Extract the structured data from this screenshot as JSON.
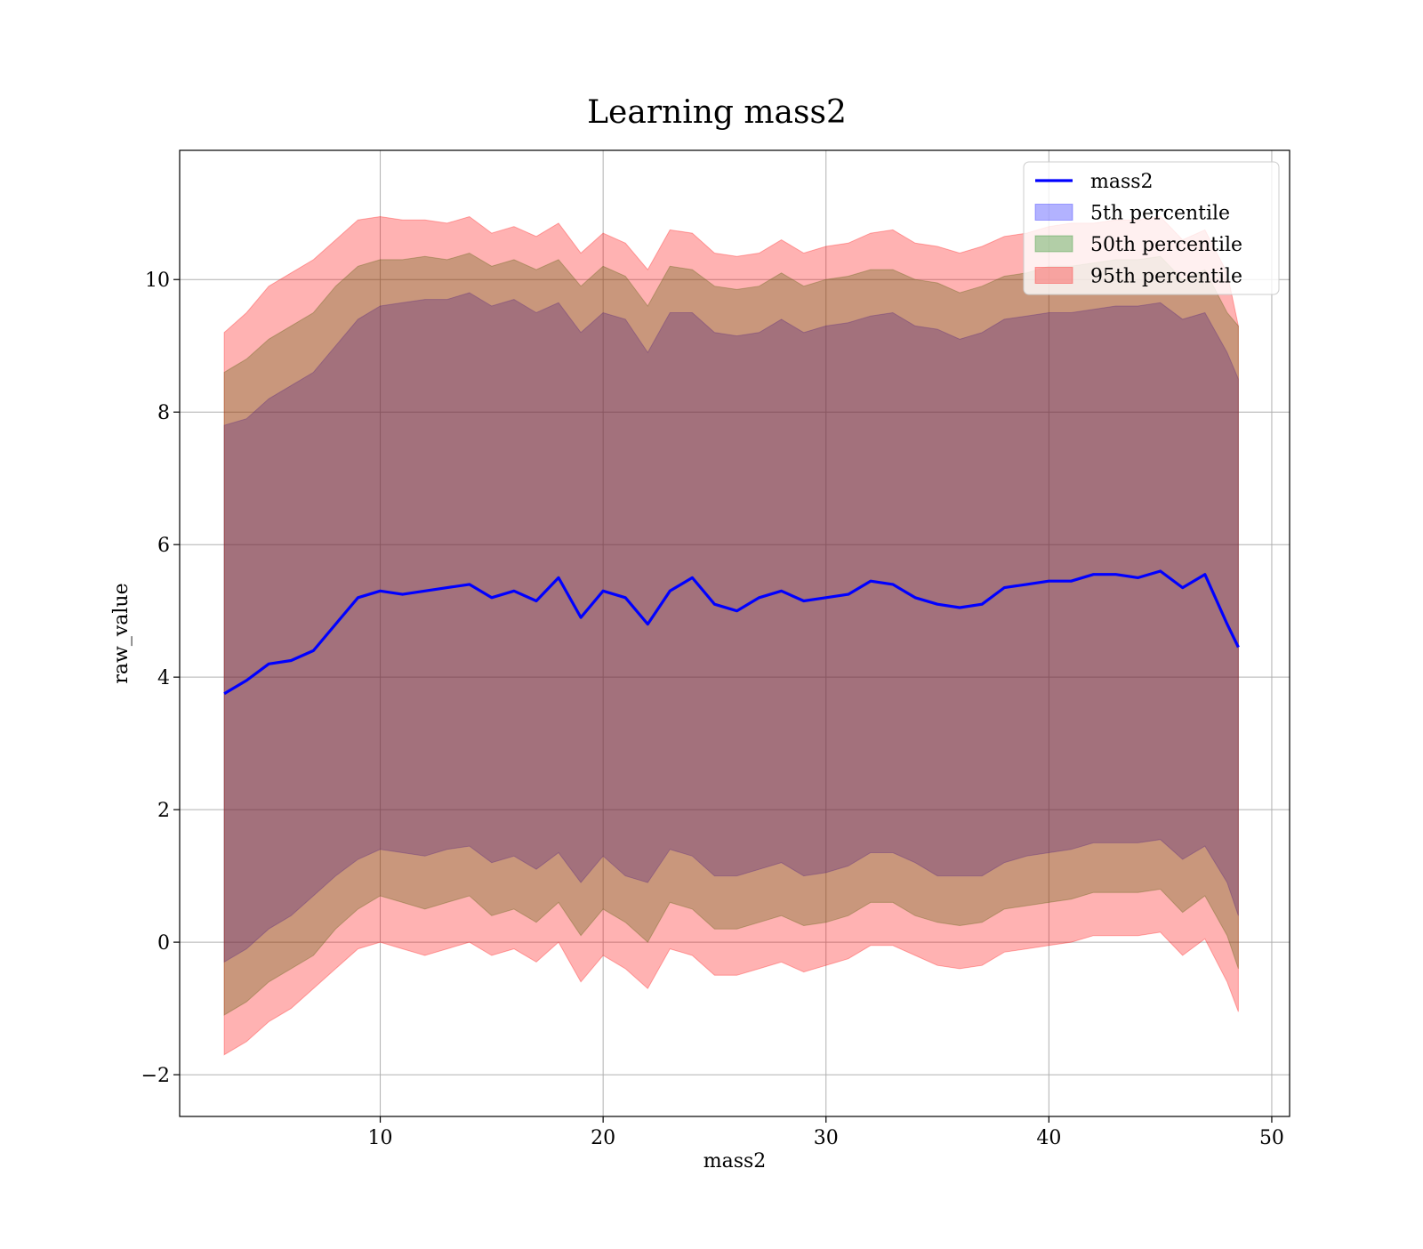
{
  "chart_data": {
    "type": "area",
    "title": "Learning mass2",
    "xlabel": "mass2",
    "ylabel": "raw_value",
    "xlim": [
      1.0,
      50.8
    ],
    "ylim": [
      -2.63,
      11.95
    ],
    "x_ticks": [
      10,
      20,
      30,
      40,
      50
    ],
    "y_ticks": [
      -2,
      0,
      2,
      4,
      6,
      8,
      10
    ],
    "grid": true,
    "legend_position": "top-right",
    "legend": [
      "mass2",
      "5th percentile",
      "50th percentile",
      "95th percentile"
    ],
    "x": [
      3,
      4,
      5,
      6,
      7,
      8,
      9,
      10,
      11,
      12,
      13,
      14,
      15,
      16,
      17,
      18,
      19,
      20,
      21,
      22,
      23,
      24,
      25,
      26,
      27,
      28,
      29,
      30,
      31,
      32,
      33,
      34,
      35,
      36,
      37,
      38,
      39,
      40,
      41,
      42,
      43,
      44,
      45,
      46,
      47,
      48,
      48.5
    ],
    "series": [
      {
        "name": "mass2",
        "type": "line",
        "color": "#0000ff",
        "values": [
          3.75,
          3.95,
          4.2,
          4.25,
          4.4,
          4.8,
          5.2,
          5.3,
          5.25,
          5.3,
          5.35,
          5.4,
          5.2,
          5.3,
          5.15,
          5.5,
          4.9,
          5.3,
          5.2,
          4.8,
          5.3,
          5.5,
          5.1,
          5.0,
          5.2,
          5.3,
          5.15,
          5.2,
          5.25,
          5.45,
          5.4,
          5.2,
          5.1,
          5.05,
          5.1,
          5.35,
          5.4,
          5.45,
          5.45,
          5.55,
          5.55,
          5.5,
          5.6,
          5.35,
          5.55,
          4.8,
          4.45
        ]
      },
      {
        "name": "5th percentile",
        "type": "band",
        "color": "#0000ff",
        "opacity": 0.3,
        "lower": [
          -0.3,
          -0.1,
          0.2,
          0.4,
          0.7,
          1.0,
          1.25,
          1.4,
          1.35,
          1.3,
          1.4,
          1.45,
          1.2,
          1.3,
          1.1,
          1.35,
          0.9,
          1.3,
          1.0,
          0.9,
          1.4,
          1.3,
          1.0,
          1.0,
          1.1,
          1.2,
          1.0,
          1.05,
          1.15,
          1.35,
          1.35,
          1.2,
          1.0,
          1.0,
          1.0,
          1.2,
          1.3,
          1.35,
          1.4,
          1.5,
          1.5,
          1.5,
          1.55,
          1.25,
          1.45,
          0.9,
          0.4
        ],
        "upper": [
          7.8,
          7.9,
          8.2,
          8.4,
          8.6,
          9.0,
          9.4,
          9.6,
          9.65,
          9.7,
          9.7,
          9.8,
          9.6,
          9.7,
          9.5,
          9.65,
          9.2,
          9.5,
          9.4,
          8.9,
          9.5,
          9.5,
          9.2,
          9.15,
          9.2,
          9.4,
          9.2,
          9.3,
          9.35,
          9.45,
          9.5,
          9.3,
          9.25,
          9.1,
          9.2,
          9.4,
          9.45,
          9.5,
          9.5,
          9.55,
          9.6,
          9.6,
          9.65,
          9.4,
          9.5,
          8.9,
          8.5
        ]
      },
      {
        "name": "50th percentile",
        "type": "band",
        "color": "#008000",
        "opacity": 0.3,
        "lower": [
          -1.1,
          -0.9,
          -0.6,
          -0.4,
          -0.2,
          0.2,
          0.5,
          0.7,
          0.6,
          0.5,
          0.6,
          0.7,
          0.4,
          0.5,
          0.3,
          0.6,
          0.1,
          0.5,
          0.3,
          0.0,
          0.6,
          0.5,
          0.2,
          0.2,
          0.3,
          0.4,
          0.25,
          0.3,
          0.4,
          0.6,
          0.6,
          0.4,
          0.3,
          0.25,
          0.3,
          0.5,
          0.55,
          0.6,
          0.65,
          0.75,
          0.75,
          0.75,
          0.8,
          0.45,
          0.7,
          0.1,
          -0.4
        ],
        "upper": [
          8.6,
          8.8,
          9.1,
          9.3,
          9.5,
          9.9,
          10.2,
          10.3,
          10.3,
          10.35,
          10.3,
          10.4,
          10.2,
          10.3,
          10.15,
          10.3,
          9.9,
          10.2,
          10.05,
          9.6,
          10.2,
          10.15,
          9.9,
          9.85,
          9.9,
          10.1,
          9.9,
          10.0,
          10.05,
          10.15,
          10.15,
          10.0,
          9.95,
          9.8,
          9.9,
          10.05,
          10.1,
          10.2,
          10.2,
          10.25,
          10.3,
          10.3,
          10.35,
          10.0,
          10.15,
          9.5,
          9.3
        ]
      },
      {
        "name": "95th percentile",
        "type": "band",
        "color": "#ff0000",
        "opacity": 0.3,
        "lower": [
          -1.7,
          -1.5,
          -1.2,
          -1.0,
          -0.7,
          -0.4,
          -0.1,
          0.0,
          -0.1,
          -0.2,
          -0.1,
          0.0,
          -0.2,
          -0.1,
          -0.3,
          0.0,
          -0.6,
          -0.2,
          -0.4,
          -0.7,
          -0.1,
          -0.2,
          -0.5,
          -0.5,
          -0.4,
          -0.3,
          -0.45,
          -0.35,
          -0.25,
          -0.05,
          -0.05,
          -0.2,
          -0.35,
          -0.4,
          -0.35,
          -0.15,
          -0.1,
          -0.05,
          0.0,
          0.1,
          0.1,
          0.1,
          0.15,
          -0.2,
          0.05,
          -0.6,
          -1.05
        ],
        "upper": [
          9.2,
          9.5,
          9.9,
          10.1,
          10.3,
          10.6,
          10.9,
          10.95,
          10.9,
          10.9,
          10.85,
          10.95,
          10.7,
          10.8,
          10.65,
          10.85,
          10.4,
          10.7,
          10.55,
          10.15,
          10.75,
          10.7,
          10.4,
          10.35,
          10.4,
          10.6,
          10.4,
          10.5,
          10.55,
          10.7,
          10.75,
          10.55,
          10.5,
          10.4,
          10.5,
          10.65,
          10.7,
          10.8,
          10.85,
          10.85,
          10.9,
          10.9,
          10.95,
          10.6,
          10.75,
          10.1,
          9.3
        ]
      }
    ]
  }
}
